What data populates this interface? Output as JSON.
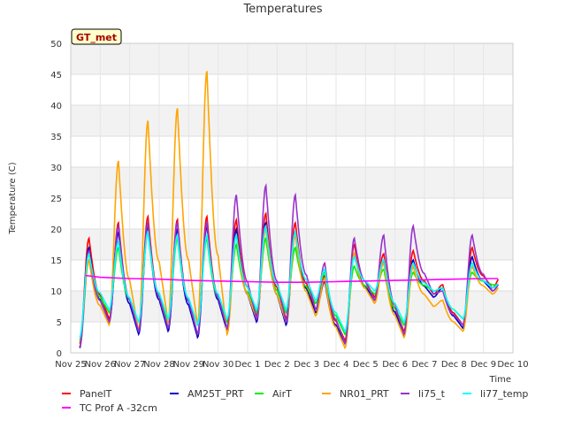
{
  "chart_data": {
    "type": "line",
    "title": "Temperatures",
    "xlabel": "Time",
    "ylabel": "Temperature (C)",
    "ylim": [
      0,
      50
    ],
    "xlim": [
      0,
      15
    ],
    "yticks": [
      0,
      5,
      10,
      15,
      20,
      25,
      30,
      35,
      40,
      45,
      50
    ],
    "xticks": [
      {
        "label": "Nov 25",
        "x": 0
      },
      {
        "label": "Nov 26",
        "x": 1
      },
      {
        "label": "Nov 27",
        "x": 2
      },
      {
        "label": "Nov 28",
        "x": 3
      },
      {
        "label": "Nov 29",
        "x": 4
      },
      {
        "label": "Nov 30",
        "x": 5
      },
      {
        "label": "Dec 1",
        "x": 6
      },
      {
        "label": "Dec 2",
        "x": 7
      },
      {
        "label": "Dec 3",
        "x": 8
      },
      {
        "label": "Dec 4",
        "x": 9
      },
      {
        "label": "Dec 5",
        "x": 10
      },
      {
        "label": "Dec 6",
        "x": 11
      },
      {
        "label": "Dec 7",
        "x": 12
      },
      {
        "label": "Dec 8",
        "x": 13
      },
      {
        "label": "Dec 9",
        "x": 14
      },
      {
        "label": "Dec 10",
        "x": 15
      }
    ],
    "annotation": "GT_met",
    "grid": true,
    "legend_position": "bottom",
    "x_data_range": [
      0.3,
      14.5
    ],
    "daily_profile": {
      "note": "Each series is drawn from daily min / max temperatures (day index = days after Nov 25), peak at mid-afternoon",
      "days": [
        0,
        1,
        2,
        3,
        4,
        5,
        6,
        7,
        8,
        9,
        10,
        11,
        12,
        13,
        14
      ]
    },
    "series": [
      {
        "name": "PanelT",
        "color": "#ff0000",
        "mins": [
          1.5,
          5.5,
          3.5,
          4.0,
          3.0,
          4.0,
          6.0,
          5.5,
          7.0,
          2.0,
          9.0,
          3.5,
          9.5,
          4.5,
          10.5
        ],
        "maxs": [
          18.5,
          21.0,
          22.0,
          21.5,
          22.0,
          21.5,
          22.5,
          21.0,
          12.5,
          17.5,
          16.0,
          16.5,
          11.0,
          17.0,
          12.5
        ]
      },
      {
        "name": "AM25T_PRT",
        "color": "#0000cc",
        "mins": [
          0.8,
          5.0,
          3.0,
          3.5,
          2.5,
          3.5,
          5.0,
          4.5,
          6.5,
          1.5,
          8.5,
          3.0,
          9.0,
          4.0,
          10.0
        ],
        "maxs": [
          17.0,
          19.5,
          20.5,
          20.0,
          20.5,
          20.0,
          21.0,
          19.5,
          11.5,
          16.0,
          15.0,
          15.0,
          10.5,
          15.5,
          11.5
        ]
      },
      {
        "name": "AirT",
        "color": "#00ee00",
        "mins": [
          2.0,
          6.5,
          5.0,
          5.0,
          4.5,
          5.0,
          6.5,
          6.5,
          8.0,
          3.0,
          9.5,
          4.5,
          10.0,
          5.5,
          11.0
        ],
        "maxs": [
          15.0,
          17.0,
          19.5,
          18.5,
          18.5,
          17.5,
          18.5,
          17.0,
          13.0,
          14.0,
          13.5,
          13.0,
          10.5,
          13.0,
          11.0
        ]
      },
      {
        "name": "NR01_PRT",
        "color": "#ffa500",
        "mins": [
          1.0,
          4.5,
          3.5,
          5.0,
          4.5,
          3.0,
          5.5,
          5.0,
          6.0,
          0.8,
          8.0,
          2.5,
          7.5,
          3.5,
          9.5
        ],
        "maxs": [
          15.0,
          31.0,
          37.5,
          39.5,
          45.5,
          19.0,
          20.0,
          19.0,
          12.0,
          16.0,
          14.5,
          14.0,
          8.5,
          14.0,
          11.0
        ]
      },
      {
        "name": "li75_t",
        "color": "#9932cc",
        "mins": [
          1.0,
          5.0,
          3.5,
          4.0,
          3.0,
          4.0,
          5.5,
          5.0,
          7.0,
          1.5,
          8.5,
          3.0,
          9.5,
          4.5,
          10.0
        ],
        "maxs": [
          16.5,
          20.5,
          21.0,
          21.0,
          21.0,
          25.5,
          27.0,
          25.5,
          14.5,
          18.5,
          19.0,
          20.5,
          10.0,
          19.0,
          11.5
        ]
      },
      {
        "name": "li77_temp",
        "color": "#00ffff",
        "mins": [
          2.5,
          7.0,
          5.0,
          5.5,
          4.5,
          5.5,
          7.0,
          7.0,
          8.5,
          3.5,
          10.0,
          5.0,
          10.0,
          5.5,
          10.5
        ],
        "maxs": [
          16.0,
          18.0,
          19.5,
          19.0,
          19.0,
          19.0,
          20.5,
          19.5,
          13.5,
          15.5,
          15.0,
          14.5,
          10.5,
          14.5,
          11.5
        ]
      },
      {
        "name": "TC Prof A -32cm",
        "color": "#ff00ff",
        "points": [
          [
            0.5,
            12.5
          ],
          [
            1.0,
            12.2
          ],
          [
            2.0,
            12.0
          ],
          [
            3.0,
            11.9
          ],
          [
            4.0,
            11.7
          ],
          [
            5.0,
            11.6
          ],
          [
            6.0,
            11.5
          ],
          [
            7.0,
            11.4
          ],
          [
            8.0,
            11.4
          ],
          [
            9.0,
            11.5
          ],
          [
            10.0,
            11.6
          ],
          [
            11.0,
            11.7
          ],
          [
            12.0,
            11.8
          ],
          [
            13.0,
            11.9
          ],
          [
            14.0,
            12.0
          ],
          [
            14.5,
            12.0
          ]
        ]
      }
    ]
  }
}
